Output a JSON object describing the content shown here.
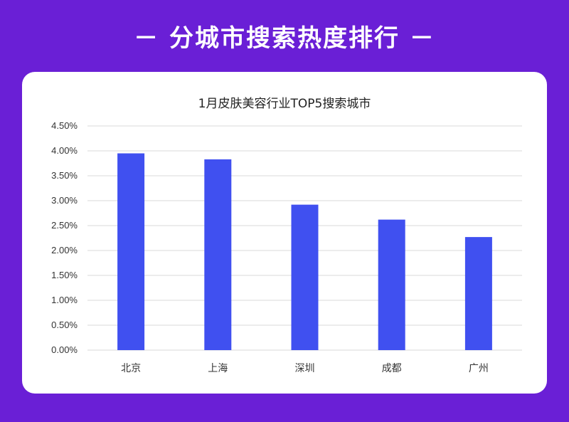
{
  "header": {
    "title": "－ 分城市搜索热度排行 －"
  },
  "colors": {
    "background": "#6a1fd6",
    "bar": "#4050f0",
    "grid": "#d9d9d9"
  },
  "chart_data": {
    "type": "bar",
    "title": "1月皮肤美容行业TOP5搜索城市",
    "categories": [
      "北京",
      "上海",
      "深圳",
      "成都",
      "广州"
    ],
    "values": [
      3.95,
      3.83,
      2.92,
      2.62,
      2.27
    ],
    "unit": "%",
    "ylim": [
      0,
      4.5
    ],
    "yticks": [
      "0.00%",
      "0.50%",
      "1.00%",
      "1.50%",
      "2.00%",
      "2.50%",
      "3.00%",
      "3.50%",
      "4.00%",
      "4.50%"
    ],
    "grid": true
  }
}
